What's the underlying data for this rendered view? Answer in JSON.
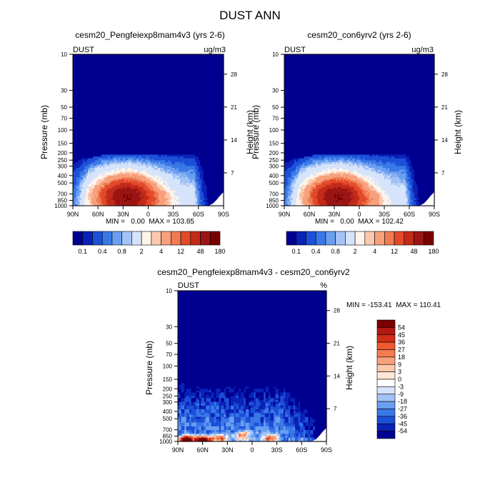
{
  "title": "DUST ANN",
  "chart_data": [
    {
      "type": "heatmap",
      "title": "cesm20_Pengfeiexp8mam4v3 (yrs 2-6)",
      "variable": "DUST",
      "units": "ug/m3",
      "ylabel": "Pressure (mb)",
      "ylabel_right": "Height (km)",
      "x_ticks": [
        "90N",
        "60N",
        "30N",
        "0",
        "30S",
        "60S",
        "90S"
      ],
      "y_ticks": [
        10,
        30,
        50,
        70,
        100,
        150,
        200,
        250,
        300,
        400,
        500,
        700,
        850,
        1000
      ],
      "y_ticks_right": [
        28,
        21,
        14,
        7
      ],
      "ylim": [
        1000,
        10
      ],
      "yscale": "log",
      "min": "0.00",
      "max": "103.85",
      "stats_text": "MIN =   0.00  MAX = 103.85",
      "colorbar_orientation": "horizontal",
      "colorbar_ticks": [
        "0.1",
        "0.4",
        "0.8",
        "2",
        "4",
        "12",
        "48",
        "180"
      ],
      "features": {
        "tropo_cap_p": 215,
        "left_edge_p": 220,
        "main_lobe": {
          "lat": 26,
          "p": 775,
          "peak": "red"
        },
        "secondary_lobe": {
          "lat": -10,
          "p": 830
        },
        "south_fade_lat": -55
      }
    },
    {
      "type": "heatmap",
      "title": "cesm20_con6yrv2 (yrs 2-6)",
      "variable": "DUST",
      "units": "ug/m3",
      "ylabel": "Pressure (mb)",
      "ylabel_right": "Height (km)",
      "x_ticks": [
        "90N",
        "60N",
        "30N",
        "0",
        "30S",
        "60S",
        "90S"
      ],
      "y_ticks": [
        10,
        30,
        50,
        70,
        100,
        150,
        200,
        250,
        300,
        400,
        500,
        700,
        850,
        1000
      ],
      "y_ticks_right": [
        28,
        21,
        14,
        7
      ],
      "ylim": [
        1000,
        10
      ],
      "yscale": "log",
      "min": "0.00",
      "max": "102.42",
      "stats_text": "MIN =   0.00  MAX = 102.42",
      "colorbar_orientation": "horizontal",
      "colorbar_ticks": [
        "0.1",
        "0.4",
        "0.8",
        "2",
        "4",
        "12",
        "48",
        "180"
      ],
      "features": {
        "tropo_cap_p": 215,
        "left_edge_p": 220,
        "main_lobe": {
          "lat": 26,
          "p": 775,
          "peak": "red"
        },
        "secondary_lobe": {
          "lat": -12,
          "p": 830
        },
        "south_fade_lat": -55
      }
    },
    {
      "type": "heatmap",
      "title": "cesm20_Pengfeiexp8mam4v3 - cesm20_con6yrv2",
      "variable": "DUST",
      "units": "%",
      "ylabel": "Pressure (mb)",
      "ylabel_right": "Height (km)",
      "x_ticks": [
        "90N",
        "60N",
        "30N",
        "0",
        "30S",
        "60S",
        "90S"
      ],
      "y_ticks": [
        10,
        30,
        50,
        70,
        100,
        150,
        200,
        250,
        300,
        400,
        500,
        700,
        850,
        1000
      ],
      "y_ticks_right": [
        28,
        21,
        14,
        7
      ],
      "ylim": [
        1000,
        10
      ],
      "yscale": "log",
      "min": "-153.41",
      "max": "110.41",
      "stats_text": "MIN = -153.41  MAX = 110.41",
      "colorbar_orientation": "vertical",
      "colorbar_ticks": [
        "54",
        "45",
        "36",
        "27",
        "18",
        "9",
        "3",
        "0",
        "-3",
        "-9",
        "-18",
        "-27",
        "-36",
        "-45",
        "-54"
      ],
      "features": {
        "tropo_cap_p": 190,
        "south_rise_lat": -40,
        "positive_patches": [
          {
            "lat": 80,
            "p": 950,
            "level": "strong"
          },
          {
            "lat": 60,
            "p": 960,
            "level": "strong"
          },
          {
            "lat": 40,
            "p": 900,
            "level": "weak"
          },
          {
            "lat": 12,
            "p": 820,
            "level": "weak"
          },
          {
            "lat": -22,
            "p": 900,
            "level": "weak"
          }
        ]
      }
    }
  ],
  "colors": {
    "positive_scale": [
      "#000090",
      "#0a22b8",
      "#1d50d8",
      "#3a78e8",
      "#6a9ff0",
      "#a3c2f5",
      "#d6e4fb",
      "#fff4ea",
      "#fcc9ae",
      "#f7a07c",
      "#f07a52",
      "#e24a2a",
      "#c22a1a",
      "#9b1515",
      "#7a0000"
    ],
    "diff_scale": [
      "#7a0000",
      "#b21812",
      "#d22e18",
      "#ef5a30",
      "#f47c50",
      "#f7a07c",
      "#fbc8aa",
      "#fde8d8",
      "#ffffff",
      "#d6e4fb",
      "#a3c2f5",
      "#6a9ff0",
      "#3a78e8",
      "#1d50d8",
      "#0a22b8",
      "#000090"
    ]
  }
}
